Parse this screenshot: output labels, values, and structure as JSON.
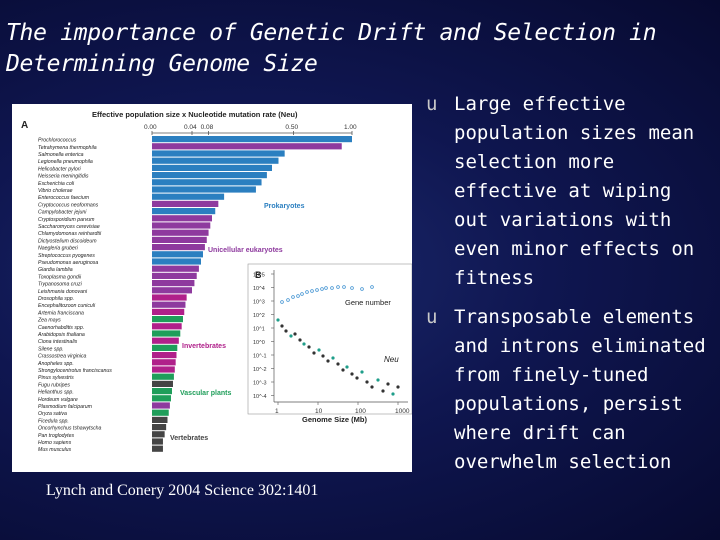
{
  "slide": {
    "title": "The importance of Genetic Drift and Selection in Determining Genome Size",
    "citation": "Lynch and Conery 2004 Science 302:1401",
    "bullet_marker": "u",
    "bullets": [
      "Large effective population sizes mean selection more effective at wiping out variations with even minor effects on fitness",
      "Transposable elements and introns eliminated from finely-tuned populations, persist where drift can overwhelm selection"
    ]
  },
  "figure": {
    "panel_a": {
      "label": "A",
      "axis_title": "Effective population size x Nucleotide mutation rate (Neu)",
      "ticks": [
        "0.00",
        "0.04",
        "0.08",
        "0.50",
        "1.00"
      ],
      "group_labels": [
        "Prokaryotes",
        "Unicellular eukaryotes",
        "Invertebrates",
        "Vascular plants",
        "Vertebrates"
      ],
      "group_colors": [
        "#2b7fc0",
        "#8e3a9e",
        "#b0208a",
        "#1f9e5a",
        "#444444"
      ],
      "species": [
        {
          "name": "Prochlorococcus",
          "value": 1.0,
          "group": 0
        },
        {
          "name": "Tetrahymena thermophila",
          "value": 0.9,
          "group": 1
        },
        {
          "name": "Salmonella enterica",
          "value": 0.44,
          "group": 0
        },
        {
          "name": "Legionella pneumophila",
          "value": 0.4,
          "group": 0
        },
        {
          "name": "Helicobacter pylori",
          "value": 0.36,
          "group": 0
        },
        {
          "name": "Neisseria meningitidis",
          "value": 0.33,
          "group": 0
        },
        {
          "name": "Escherichia coli",
          "value": 0.3,
          "group": 0
        },
        {
          "name": "Vibrio cholerae",
          "value": 0.27,
          "group": 0
        },
        {
          "name": "Enterococcus faecium",
          "value": 0.13,
          "group": 0
        },
        {
          "name": "Cryptococcus neoformans",
          "value": 0.11,
          "group": 1
        },
        {
          "name": "Campylobacter jejuni",
          "value": 0.1,
          "group": 0
        },
        {
          "name": "Cryptosporidium parvum",
          "value": 0.09,
          "group": 1
        },
        {
          "name": "Saccharomyces cerevisiae",
          "value": 0.085,
          "group": 1
        },
        {
          "name": "Chlamydomonas reinhardtii",
          "value": 0.08,
          "group": 1
        },
        {
          "name": "Dictyostelium discoideum",
          "value": 0.075,
          "group": 1
        },
        {
          "name": "Naegleria gruberi",
          "value": 0.07,
          "group": 1
        },
        {
          "name": "Streptococcus pyogenes",
          "value": 0.065,
          "group": 0
        },
        {
          "name": "Pseudomonas aeruginosa",
          "value": 0.06,
          "group": 0
        },
        {
          "name": "Giardia lamblia",
          "value": 0.055,
          "group": 1
        },
        {
          "name": "Toxoplasma gondii",
          "value": 0.05,
          "group": 1
        },
        {
          "name": "Trypanosoma cruzi",
          "value": 0.045,
          "group": 1
        },
        {
          "name": "Leishmania donovani",
          "value": 0.04,
          "group": 1
        },
        {
          "name": "Drosophila spp.",
          "value": 0.03,
          "group": 2
        },
        {
          "name": "Encephalitozoon cuniculi",
          "value": 0.028,
          "group": 1
        },
        {
          "name": "Artemia franciscana",
          "value": 0.026,
          "group": 2
        },
        {
          "name": "Zea mays",
          "value": 0.024,
          "group": 3
        },
        {
          "name": "Caenorhabditis spp.",
          "value": 0.022,
          "group": 2
        },
        {
          "name": "Arabidopsis thaliana",
          "value": 0.02,
          "group": 3
        },
        {
          "name": "Ciona intestinalis",
          "value": 0.018,
          "group": 2
        },
        {
          "name": "Silene spp.",
          "value": 0.016,
          "group": 3
        },
        {
          "name": "Crassostrea virginica",
          "value": 0.015,
          "group": 2
        },
        {
          "name": "Anopheles spp.",
          "value": 0.014,
          "group": 2
        },
        {
          "name": "Strongylocentrotus franciscanus",
          "value": 0.013,
          "group": 2
        },
        {
          "name": "Pinus sylvestris",
          "value": 0.012,
          "group": 3
        },
        {
          "name": "Fugu rubripes",
          "value": 0.011,
          "group": 4
        },
        {
          "name": "Helianthus spp.",
          "value": 0.01,
          "group": 3
        },
        {
          "name": "Hordeum vulgare",
          "value": 0.009,
          "group": 3
        },
        {
          "name": "Plasmodium falciparum",
          "value": 0.008,
          "group": 1
        },
        {
          "name": "Oryza sativa",
          "value": 0.007,
          "group": 3
        },
        {
          "name": "Ficedula spp.",
          "value": 0.006,
          "group": 4
        },
        {
          "name": "Oncorhynchus tshawytscha",
          "value": 0.005,
          "group": 4
        },
        {
          "name": "Pan troglodytes",
          "value": 0.004,
          "group": 4
        },
        {
          "name": "Homo sapiens",
          "value": 0.003,
          "group": 4
        },
        {
          "name": "Mus musculus",
          "value": 0.003,
          "group": 4
        }
      ]
    },
    "panel_b": {
      "label": "B",
      "xlabel": "Genome Size (Mb)",
      "x_ticks": [
        "1",
        "10",
        "100",
        "1000"
      ],
      "y_ticks": [
        "10^5",
        "10^4",
        "10^3",
        "10^2",
        "10^1",
        "10^0",
        "10^-1",
        "10^-2",
        "10^-3",
        "10^-4"
      ],
      "gene_number_label": "Gene number",
      "neu_label": "Neu"
    }
  }
}
